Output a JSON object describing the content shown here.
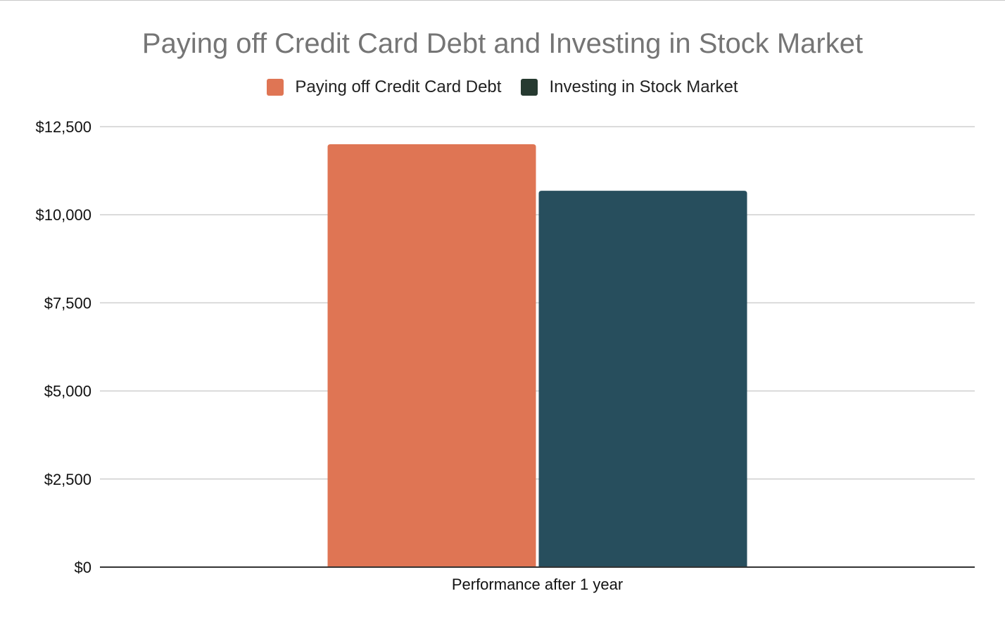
{
  "chart_data": {
    "type": "bar",
    "title": "Paying off Credit Card Debt and Investing in Stock Market",
    "xlabel": "",
    "ylabel": "",
    "categories": [
      "Performance after 1 year"
    ],
    "series": [
      {
        "name": "Paying off Credit Card Debt",
        "values": [
          12000
        ],
        "color": "#df7554"
      },
      {
        "name": "Investing in Stock Market",
        "values": [
          10680
        ],
        "color": "#274e5d"
      }
    ],
    "legend_swatch_colors": [
      "#df7554",
      "#263a30"
    ],
    "ylim": [
      0,
      12500
    ],
    "yticks": [
      0,
      2500,
      5000,
      7500,
      10000,
      12500
    ],
    "ytick_labels": [
      "$0",
      "$2,500",
      "$5,000",
      "$7,500",
      "$10,000",
      "$12,500"
    ],
    "grid": true,
    "legend_position": "top-center"
  }
}
